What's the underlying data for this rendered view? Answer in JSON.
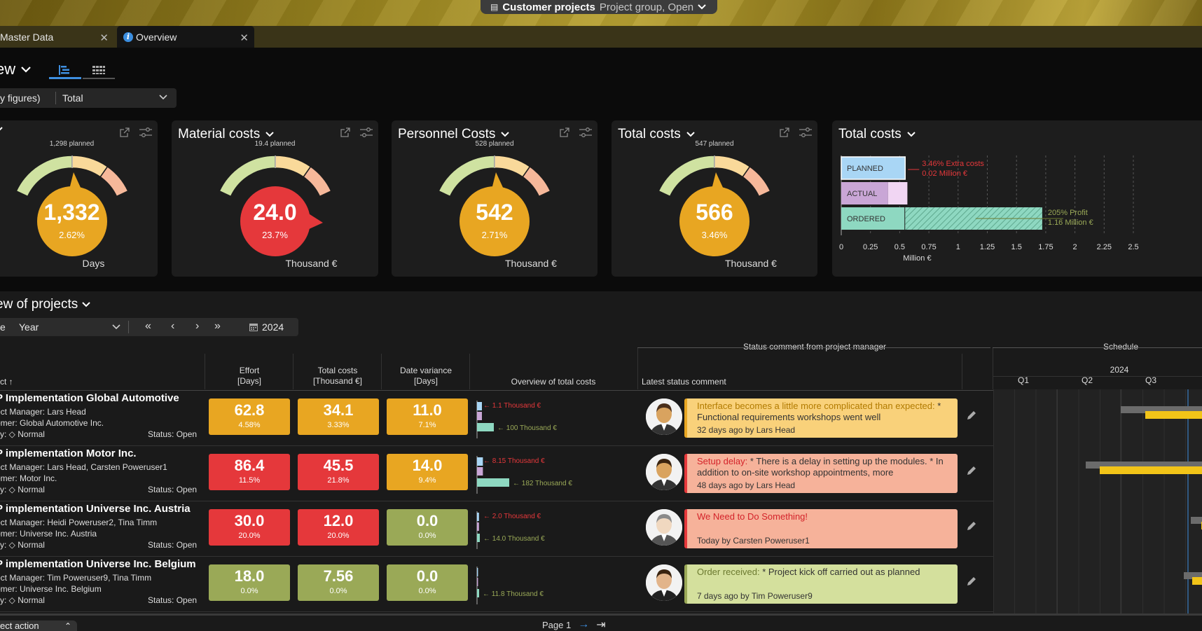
{
  "header": {
    "title": "Customer projects",
    "subtitle": "Project group, Open"
  },
  "tabs": [
    {
      "label": "Master Data",
      "icon": "close-icon"
    },
    {
      "label": "Overview",
      "icon": "info-icon"
    }
  ],
  "view": {
    "title": "ew",
    "filter_left": "y figures)",
    "filter_value": "Total"
  },
  "kpis": [
    {
      "title": "",
      "planned": "1,298 planned",
      "value": "1,332",
      "pct": "2.62%",
      "unit": "Days",
      "status": "ok"
    },
    {
      "title": "Material costs",
      "planned": "19.4 planned",
      "value": "24.0",
      "pct": "23.7%",
      "unit": "Thousand €",
      "status": "bad"
    },
    {
      "title": "Personnel Costs",
      "planned": "528 planned",
      "value": "542",
      "pct": "2.71%",
      "unit": "Thousand €",
      "status": "ok"
    },
    {
      "title": "Total costs",
      "planned": "547 planned",
      "value": "566",
      "pct": "3.46%",
      "unit": "Thousand €",
      "status": "ok"
    }
  ],
  "bar_card": {
    "title": "Total costs"
  },
  "chart_data": {
    "type": "bar",
    "orientation": "horizontal",
    "categories": [
      "PLANNED",
      "ACTUAL",
      "ORDERED"
    ],
    "values": [
      0.547,
      0.566,
      1.72
    ],
    "xlabel": "Million €",
    "xlim": [
      0,
      2.5
    ],
    "xticks": [
      "0",
      "0.25",
      "0.5",
      "0.75",
      "1",
      "1.25",
      "1.5",
      "1.75",
      "2",
      "2.25",
      "2.5"
    ],
    "annotations": [
      {
        "text": "3.46% Extra costs",
        "color": "#e5383b"
      },
      {
        "text": "0.02 Million €",
        "color": "#e5383b"
      },
      {
        "text": "205% Profit",
        "color": "#9aa957"
      },
      {
        "text": "1.16 Million €",
        "color": "#9aa957"
      }
    ],
    "colors": {
      "PLANNED": "#a9d6f5",
      "ACTUAL": "#c9a6d6",
      "ORDERED": "#8ed8c1"
    }
  },
  "projects_section": {
    "title": "ew of projects",
    "select_prefix": "e",
    "period": "Year",
    "date": "2024"
  },
  "table": {
    "col_project": "ct ↑",
    "col_effort": [
      "Effort",
      "[Days]"
    ],
    "col_total": [
      "Total costs",
      "[Thousand €]"
    ],
    "col_date": [
      "Date variance",
      "[Days]"
    ],
    "col_overview": "Overview of total costs",
    "group_status": "Status comment from project manager",
    "col_comment": "Latest status comment",
    "group_schedule": "Schedule",
    "schedule_year": "2024",
    "quarters": [
      "Q1",
      "Q2",
      "Q3"
    ]
  },
  "rows": [
    {
      "name": "P Implementation Global Automotive",
      "manager": "ect Manager:  Lars Head",
      "customer": "omer:  Global Automotive Inc.",
      "priority": "ity:  ◇ Normal",
      "status": "Status:  Open",
      "effort": {
        "v": "62.8",
        "p": "4.58%",
        "s": "ok"
      },
      "total": {
        "v": "34.1",
        "p": "3.33%",
        "s": "ok"
      },
      "date": {
        "v": "11.0",
        "p": "7.1%",
        "s": "ok"
      },
      "mini1": "1.1 Thousand €",
      "mini2": "100 Thousand €",
      "comment_head": "Interface becomes a little more complicated than expected:",
      "comment_body": " * Functional requirements workshops went well",
      "comment_meta": "32 days ago by Lars Head",
      "comment_style": "c-yellow"
    },
    {
      "name": "P implementation Motor Inc.",
      "manager": "ect Manager:  Lars Head, Carsten Poweruser1",
      "customer": "omer:  Motor Inc.",
      "priority": "ity:  ◇ Normal",
      "status": "Status:  Open",
      "effort": {
        "v": "86.4",
        "p": "11.5%",
        "s": "bad"
      },
      "total": {
        "v": "45.5",
        "p": "21.8%",
        "s": "bad"
      },
      "date": {
        "v": "14.0",
        "p": "9.4%",
        "s": "ok"
      },
      "mini1": "8.15 Thousand €",
      "mini2": "182 Thousand €",
      "comment_head": "Setup delay:",
      "comment_body": " * There is a delay in setting up the modules. * In addition to on-site workshop appointments, more",
      "comment_meta": "48 days ago by Lars Head",
      "comment_style": "c-red"
    },
    {
      "name": "P implementation Universe Inc. Austria",
      "manager": "ect Manager:  Heidi Poweruser2, Tina Timm",
      "customer": "omer:  Universe Inc. Austria",
      "priority": "ity:  ◇ Normal",
      "status": "Status:  Open",
      "effort": {
        "v": "30.0",
        "p": "20.0%",
        "s": "bad"
      },
      "total": {
        "v": "12.0",
        "p": "20.0%",
        "s": "bad"
      },
      "date": {
        "v": "0.0",
        "p": "0.0%",
        "s": "good"
      },
      "mini1": "2.0 Thousand €",
      "mini2": "14.0 Thousand €",
      "comment_head": "We Need to Do Something!",
      "comment_body": "",
      "comment_meta": "Today by Carsten Poweruser1",
      "comment_style": "c-red"
    },
    {
      "name": "P implementation Universe Inc. Belgium",
      "manager": "ect Manager:  Tim Poweruser9, Tina Timm",
      "customer": "omer:  Universe Inc. Belgium",
      "priority": "ity:  ◇ Normal",
      "status": "Status:  Open",
      "effort": {
        "v": "18.0",
        "p": "0.0%",
        "s": "good"
      },
      "total": {
        "v": "7.56",
        "p": "0.0%",
        "s": "good"
      },
      "date": {
        "v": "0.0",
        "p": "0.0%",
        "s": "good"
      },
      "mini1": "",
      "mini2": "11.8 Thousand €",
      "comment_head": "Order received:",
      "comment_body": " * Project kick off carried out as planned",
      "comment_meta": "7 days ago by Tim Poweruser9",
      "comment_style": "c-green"
    }
  ],
  "footer": {
    "page": "Page 1",
    "action": "ect action"
  },
  "colors": {
    "ok": "#e8a622",
    "bad": "#e5383b",
    "good": "#9aa957",
    "accent": "#3e8fe0"
  }
}
